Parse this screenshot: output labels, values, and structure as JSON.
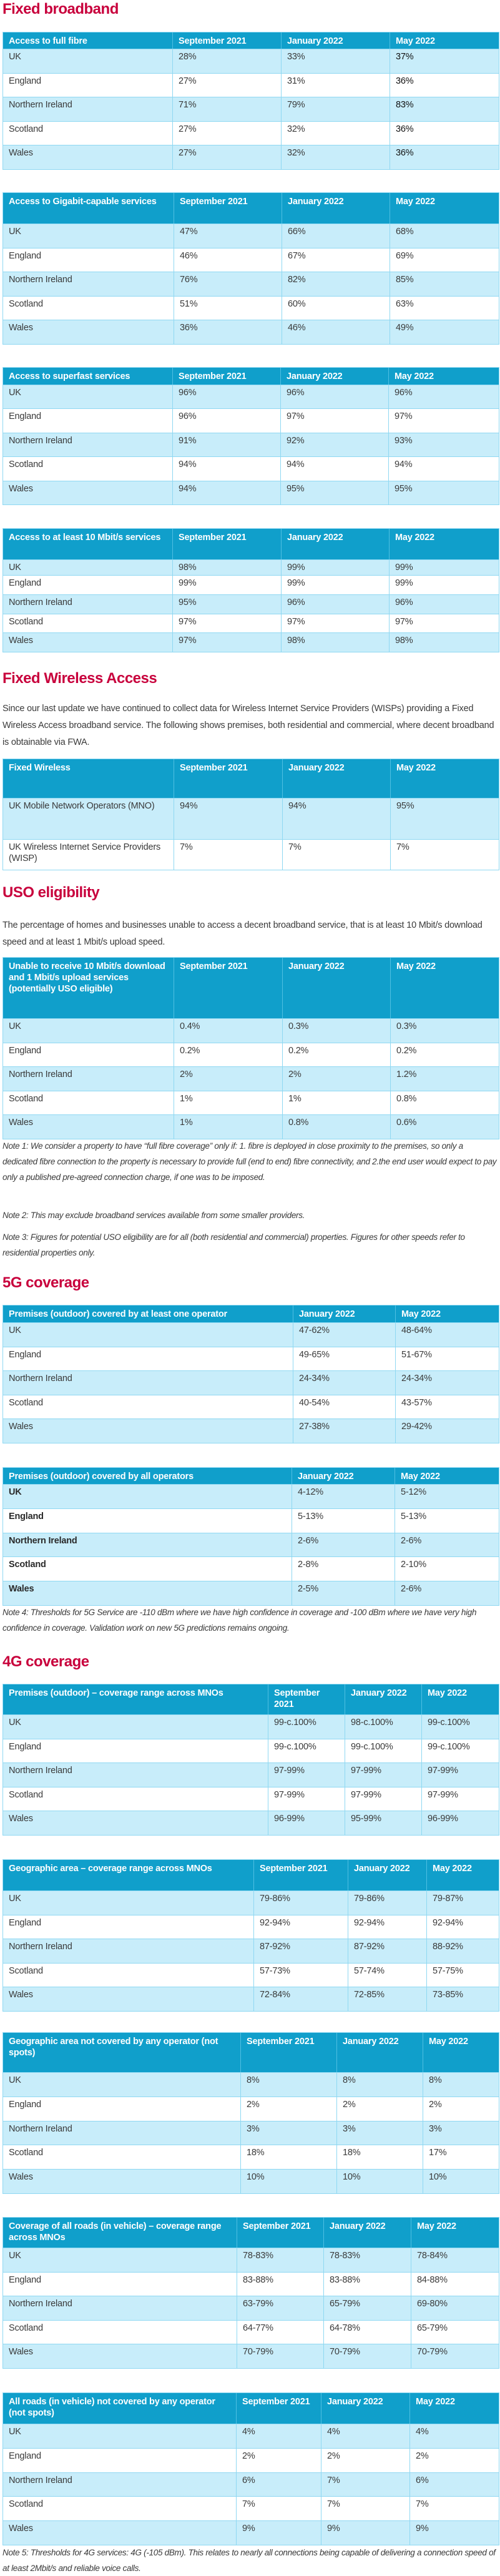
{
  "colors": {
    "heading": "#c8003c",
    "table_header": "#109fcb",
    "row_alt": "#c8edfa",
    "border": "#8fd8f2"
  },
  "sections": {
    "fixed_broadband": {
      "heading": "Fixed broadband"
    },
    "fwa": {
      "heading": "Fixed Wireless Access",
      "paragraph": "Since our last update we have continued to collect data for Wireless Internet Service Providers (WISPs) providing a Fixed Wireless Access broadband service. The following shows premises, both residential and commercial, where decent broadband is obtainable via FWA."
    },
    "uso": {
      "heading": "USO eligibility",
      "paragraph": "The percentage of homes and businesses unable to access a decent broadband service, that is at least 10 Mbit/s download speed and at least 1 Mbit/s upload speed.",
      "note1": "Note 1: We consider a property to have “full fibre coverage” only if: 1. fibre is deployed in close proximity to the premises, so only a dedicated fibre connection to the property is necessary to provide full (end to end) fibre connectivity, and 2.the end user would expect to pay only a published pre-agreed connection charge, if one was to be imposed.",
      "note2": "Note 2: This may exclude broadband services available from some smaller providers.",
      "note3": "Note 3: Figures for potential USO eligibility are for all (both residential and commercial) properties. Figures for other speeds refer to residential properties only."
    },
    "g5": {
      "heading": "5G coverage",
      "note4": "Note 4: Thresholds for 5G Service are -110 dBm where we have high confidence in coverage and -100 dBm where we have very high confidence in coverage. Validation work on new 5G predictions remains ongoing."
    },
    "g4": {
      "heading": "4G coverage",
      "note5": "Note 5: Thresholds for 4G services: 4G (-105 dBm). This relates to nearly all connections being capable of delivering a connection speed of at least 2Mbit/s and reliable voice calls."
    }
  },
  "tables": {
    "full_fibre": {
      "headers": [
        "Access to full fibre",
        "September 2021",
        "January 2022",
        "May 2022"
      ],
      "rows": [
        [
          "UK",
          "28%",
          "33%",
          "37%"
        ],
        [
          "England",
          "27%",
          "31%",
          "36%"
        ],
        [
          "Northern Ireland",
          "71%",
          "79%",
          "83%"
        ],
        [
          "Scotland",
          "27%",
          "32%",
          "36%"
        ],
        [
          "Wales",
          "27%",
          "32%",
          "36%"
        ]
      ]
    },
    "gigabit": {
      "headers": [
        "Access to Gigabit-capable services",
        "September 2021",
        "January 2022",
        "May 2022"
      ],
      "rows": [
        [
          "UK",
          "47%",
          "66%",
          "68%"
        ],
        [
          "England",
          "46%",
          "67%",
          "69%"
        ],
        [
          "Northern Ireland",
          "76%",
          "82%",
          "85%"
        ],
        [
          "Scotland",
          "51%",
          "60%",
          "63%"
        ],
        [
          "Wales",
          "36%",
          "46%",
          "49%"
        ]
      ]
    },
    "superfast": {
      "headers": [
        "Access to superfast services",
        "September 2021",
        "January 2022",
        "May 2022"
      ],
      "rows": [
        [
          "UK",
          "96%",
          "96%",
          "96%"
        ],
        [
          "England",
          "96%",
          "97%",
          "97%"
        ],
        [
          "Northern Ireland",
          "91%",
          "92%",
          "93%"
        ],
        [
          "Scotland",
          "94%",
          "94%",
          "94%"
        ],
        [
          "Wales",
          "94%",
          "95%",
          "95%"
        ]
      ]
    },
    "ten_mbit": {
      "headers": [
        "Access to at least 10 Mbit/s services",
        "September 2021",
        "January 2022",
        "May 2022"
      ],
      "rows": [
        [
          "UK",
          "98%",
          "99%",
          "99%"
        ],
        [
          "England",
          "99%",
          "99%",
          "99%"
        ],
        [
          "Northern Ireland",
          "95%",
          "96%",
          "96%"
        ],
        [
          "Scotland",
          "97%",
          "97%",
          "97%"
        ],
        [
          "Wales",
          "97%",
          "98%",
          "98%"
        ]
      ]
    },
    "fixed_wireless": {
      "headers": [
        "Fixed Wireless",
        "September 2021",
        "January 2022",
        "May 2022"
      ],
      "rows": [
        [
          "UK Mobile Network Operators (MNO)",
          "94%",
          "94%",
          "95%"
        ],
        [
          "UK Wireless Internet Service Providers (WISP)",
          "7%",
          "7%",
          "7%"
        ]
      ]
    },
    "uso": {
      "headers": [
        "Unable to receive 10 Mbit/s download and 1 Mbit/s upload services (potentially USO eligible)",
        "September 2021",
        "January 2022",
        "May 2022"
      ],
      "rows": [
        [
          "UK",
          "0.4%",
          "0.3%",
          "0.3%"
        ],
        [
          "England",
          "0.2%",
          "0.2%",
          "0.2%"
        ],
        [
          "Northern Ireland",
          "2%",
          "2%",
          "1.2%"
        ],
        [
          "Scotland",
          "1%",
          "1%",
          "0.8%"
        ],
        [
          "Wales",
          "1%",
          "0.8%",
          "0.6%"
        ]
      ]
    },
    "g5_one": {
      "headers": [
        "Premises (outdoor) covered by at least one operator",
        "January 2022",
        "May 2022"
      ],
      "rows": [
        [
          "UK",
          "47-62%",
          "48-64%"
        ],
        [
          "England",
          "49-65%",
          "51-67%"
        ],
        [
          "Northern Ireland",
          "24-34%",
          "24-34%"
        ],
        [
          "Scotland",
          "40-54%",
          "43-57%"
        ],
        [
          "Wales",
          "27-38%",
          "29-42%"
        ]
      ]
    },
    "g5_all": {
      "headers": [
        "Premises (outdoor) covered by all operators",
        "January 2022",
        "May 2022"
      ],
      "rows": [
        [
          "UK",
          "4-12%",
          "5-12%"
        ],
        [
          "England",
          "5-13%",
          "5-13%"
        ],
        [
          "Northern Ireland",
          "2-6%",
          "2-6%"
        ],
        [
          "Scotland",
          "2-8%",
          "2-10%"
        ],
        [
          "Wales",
          "2-5%",
          "2-6%"
        ]
      ]
    },
    "g4_premises": {
      "headers": [
        "Premises (outdoor) – coverage range across MNOs",
        "September 2021",
        "January 2022",
        "May 2022"
      ],
      "rows": [
        [
          "UK",
          "99-c.100%",
          "98-c.100%",
          "99-c.100%"
        ],
        [
          "England",
          "99-c.100%",
          "99-c.100%",
          "99-c.100%"
        ],
        [
          "Northern Ireland",
          "97-99%",
          "97-99%",
          "97-99%"
        ],
        [
          "Scotland",
          "97-99%",
          "97-99%",
          "97-99%"
        ],
        [
          "Wales",
          "96-99%",
          "95-99%",
          "96-99%"
        ]
      ]
    },
    "g4_geo": {
      "headers": [
        "Geographic area – coverage range across MNOs",
        "September 2021",
        "January 2022",
        "May 2022"
      ],
      "rows": [
        [
          "UK",
          "79-86%",
          "79-86%",
          "79-87%"
        ],
        [
          "England",
          "92-94%",
          "92-94%",
          "92-94%"
        ],
        [
          "Northern Ireland",
          "87-92%",
          "87-92%",
          "88-92%"
        ],
        [
          "Scotland",
          "57-73%",
          "57-74%",
          "57-75%"
        ],
        [
          "Wales",
          "72-84%",
          "72-85%",
          "73-85%"
        ]
      ]
    },
    "g4_geo_notspots": {
      "headers": [
        "Geographic area not covered by any operator (not spots)",
        "September 2021",
        "January 2022",
        "May 2022"
      ],
      "rows": [
        [
          "UK",
          "8%",
          "8%",
          "8%"
        ],
        [
          "England",
          "2%",
          "2%",
          "2%"
        ],
        [
          "Northern Ireland",
          "3%",
          "3%",
          "3%"
        ],
        [
          "Scotland",
          "18%",
          "18%",
          "17%"
        ],
        [
          "Wales",
          "10%",
          "10%",
          "10%"
        ]
      ]
    },
    "g4_roads": {
      "headers": [
        "Coverage of all roads (in vehicle) – coverage range across MNOs",
        "September 2021",
        "January 2022",
        "May 2022"
      ],
      "rows": [
        [
          "UK",
          "78-83%",
          "78-83%",
          "78-84%"
        ],
        [
          "England",
          "83-88%",
          "83-88%",
          "84-88%"
        ],
        [
          "Northern Ireland",
          "63-79%",
          "65-79%",
          "69-80%"
        ],
        [
          "Scotland",
          "64-77%",
          "64-78%",
          "65-79%"
        ],
        [
          "Wales",
          "70-79%",
          "70-79%",
          "70-79%"
        ]
      ]
    },
    "g4_roads_notspots": {
      "headers": [
        "All roads (in vehicle) not covered by any operator (not spots)",
        "September 2021",
        "January 2022",
        "May 2022"
      ],
      "rows": [
        [
          "UK",
          "4%",
          "4%",
          "4%"
        ],
        [
          "England",
          "2%",
          "2%",
          "2%"
        ],
        [
          "Northern Ireland",
          "6%",
          "7%",
          "6%"
        ],
        [
          "Scotland",
          "7%",
          "7%",
          "7%"
        ],
        [
          "Wales",
          "9%",
          "9%",
          "9%"
        ]
      ]
    }
  }
}
